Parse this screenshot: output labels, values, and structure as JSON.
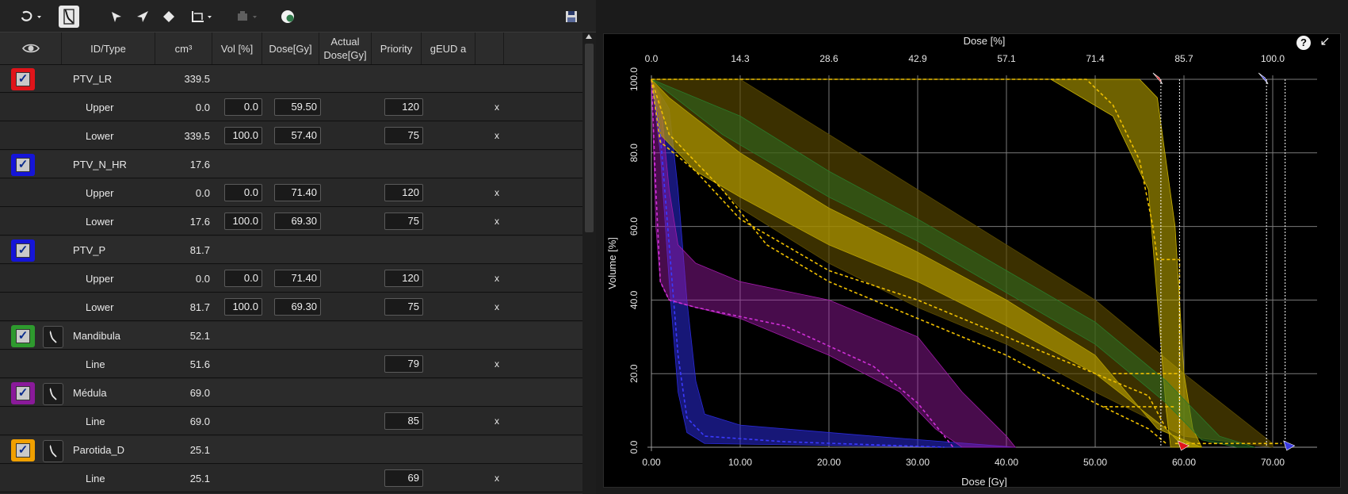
{
  "toolbar": {
    "icons": [
      "structure-menu-icon",
      "dvh-objective-icon",
      "pointer-arrow-icon",
      "navigate-arrow-icon",
      "point-diamond-icon",
      "line-objective-icon",
      "disabled-tool-icon",
      "sphere-icon",
      "save-icon"
    ]
  },
  "table": {
    "headers": {
      "eye": "",
      "id_type": "ID/Type",
      "cm3": "cm³",
      "vol": "Vol [%]",
      "dose": "Dose[Gy]",
      "actual_line1": "Actual",
      "actual_line2": "Dose[Gy]",
      "priority": "Priority",
      "geud": "gEUD a"
    },
    "structures": [
      {
        "name": "PTV_LR",
        "volume": "339.5",
        "color": "#e0141a",
        "has_dvh": false,
        "objectives": [
          {
            "type": "Upper",
            "cm3": "0.0",
            "vol": "0.0",
            "dose": "59.50",
            "priority": "120",
            "x": "x"
          },
          {
            "type": "Lower",
            "cm3": "339.5",
            "vol": "100.0",
            "dose": "57.40",
            "priority": "75",
            "x": "x"
          }
        ]
      },
      {
        "name": "PTV_N_HR",
        "volume": "17.6",
        "color": "#1515d8",
        "has_dvh": false,
        "objectives": [
          {
            "type": "Upper",
            "cm3": "0.0",
            "vol": "0.0",
            "dose": "71.40",
            "priority": "120",
            "x": "x"
          },
          {
            "type": "Lower",
            "cm3": "17.6",
            "vol": "100.0",
            "dose": "69.30",
            "priority": "75",
            "x": "x"
          }
        ]
      },
      {
        "name": "PTV_P",
        "volume": "81.7",
        "color": "#1515d8",
        "has_dvh": false,
        "objectives": [
          {
            "type": "Upper",
            "cm3": "0.0",
            "vol": "0.0",
            "dose": "71.40",
            "priority": "120",
            "x": "x"
          },
          {
            "type": "Lower",
            "cm3": "81.7",
            "vol": "100.0",
            "dose": "69.30",
            "priority": "75",
            "x": "x"
          }
        ]
      },
      {
        "name": "Mandibula",
        "volume": "52.1",
        "color": "#2e9a2e",
        "has_dvh": true,
        "objectives": [
          {
            "type": "Line",
            "cm3": "51.6",
            "vol": "",
            "dose": "",
            "priority": "79",
            "x": "x"
          }
        ]
      },
      {
        "name": "Médula",
        "volume": "69.0",
        "color": "#8a1a9a",
        "has_dvh": true,
        "objectives": [
          {
            "type": "Line",
            "cm3": "69.0",
            "vol": "",
            "dose": "",
            "priority": "85",
            "x": "x"
          }
        ]
      },
      {
        "name": "Parotida_D",
        "volume": "25.1",
        "color": "#f0a000",
        "has_dvh": true,
        "objectives": [
          {
            "type": "Line",
            "cm3": "25.1",
            "vol": "",
            "dose": "",
            "priority": "69",
            "x": "x"
          }
        ]
      }
    ]
  },
  "chart_data": {
    "type": "area",
    "title": "",
    "xlabel": "Dose [Gy]",
    "ylabel": "Volume [%]",
    "x2label": "Dose [%]",
    "xlim": [
      0,
      70
    ],
    "ylim": [
      0,
      100
    ],
    "x_ticks": [
      "0.00",
      "10.00",
      "20.00",
      "30.00",
      "40.00",
      "50.00",
      "60.00",
      "70.00"
    ],
    "x2_ticks": [
      "0.0",
      "14.3",
      "28.6",
      "42.9",
      "57.1",
      "71.4",
      "85.7",
      "100.0"
    ],
    "y_ticks": [
      "0.0",
      "20.0",
      "40.0",
      "60.0",
      "80.0",
      "100.0"
    ],
    "grid": true,
    "bands": [
      {
        "color": "#2a2ad8",
        "opacity": 0.55,
        "upper": [
          [
            0,
            100
          ],
          [
            2,
            92
          ],
          [
            3,
            70
          ],
          [
            4,
            40
          ],
          [
            5,
            18
          ],
          [
            6,
            9
          ],
          [
            10,
            6
          ],
          [
            25,
            3
          ],
          [
            41,
            0
          ]
        ],
        "lower": [
          [
            0,
            100
          ],
          [
            1,
            80
          ],
          [
            2,
            45
          ],
          [
            3,
            15
          ],
          [
            4,
            4
          ],
          [
            6,
            1
          ],
          [
            20,
            0.5
          ],
          [
            34,
            0
          ]
        ]
      },
      {
        "color": "#a01aa8",
        "opacity": 0.45,
        "upper": [
          [
            0,
            100
          ],
          [
            1,
            95
          ],
          [
            2,
            70
          ],
          [
            3,
            55
          ],
          [
            5,
            50
          ],
          [
            10,
            45
          ],
          [
            20,
            40
          ],
          [
            30,
            30
          ],
          [
            35,
            15
          ],
          [
            40,
            3
          ],
          [
            41,
            0
          ]
        ],
        "lower": [
          [
            0,
            100
          ],
          [
            0.5,
            60
          ],
          [
            1,
            45
          ],
          [
            2,
            40
          ],
          [
            5,
            38
          ],
          [
            10,
            35
          ],
          [
            20,
            25
          ],
          [
            28,
            15
          ],
          [
            32,
            5
          ],
          [
            35,
            0
          ]
        ]
      },
      {
        "color": "#5a4a00",
        "opacity": 0.65,
        "upper": [
          [
            0,
            100
          ],
          [
            10,
            100
          ],
          [
            20,
            85
          ],
          [
            30,
            70
          ],
          [
            40,
            55
          ],
          [
            50,
            40
          ],
          [
            60,
            20
          ],
          [
            70,
            1
          ]
        ],
        "lower": [
          [
            0,
            100
          ],
          [
            2,
            85
          ],
          [
            10,
            65
          ],
          [
            20,
            50
          ],
          [
            30,
            38
          ],
          [
            40,
            28
          ],
          [
            50,
            15
          ],
          [
            60,
            3
          ],
          [
            70,
            0
          ]
        ]
      },
      {
        "color": "#b8a000",
        "opacity": 0.65,
        "upper": [
          [
            0,
            100
          ],
          [
            2,
            95
          ],
          [
            10,
            80
          ],
          [
            20,
            65
          ],
          [
            30,
            53
          ],
          [
            40,
            40
          ],
          [
            50,
            25
          ],
          [
            57,
            5
          ],
          [
            62,
            0
          ]
        ],
        "lower": [
          [
            0,
            100
          ],
          [
            1,
            85
          ],
          [
            5,
            75
          ],
          [
            10,
            68
          ],
          [
            20,
            55
          ],
          [
            30,
            45
          ],
          [
            40,
            33
          ],
          [
            50,
            20
          ],
          [
            58,
            5
          ],
          [
            60,
            0
          ]
        ]
      },
      {
        "color": "#c8b000",
        "opacity": 0.55,
        "upper": [
          [
            0,
            100
          ],
          [
            55,
            100
          ],
          [
            57,
            95
          ],
          [
            59,
            60
          ],
          [
            60,
            20
          ],
          [
            61,
            5
          ],
          [
            62,
            0
          ]
        ],
        "lower": [
          [
            0,
            100
          ],
          [
            45,
            100
          ],
          [
            52,
            90
          ],
          [
            56,
            70
          ],
          [
            57,
            40
          ],
          [
            58,
            10
          ],
          [
            58.5,
            0
          ]
        ]
      },
      {
        "color": "#2a7a2a",
        "opacity": 0.45,
        "upper": [
          [
            0,
            100
          ],
          [
            10,
            90
          ],
          [
            20,
            75
          ],
          [
            30,
            62
          ],
          [
            40,
            48
          ],
          [
            50,
            34
          ],
          [
            58,
            18
          ],
          [
            64,
            3
          ],
          [
            68,
            0
          ]
        ],
        "lower": [
          [
            0,
            100
          ],
          [
            8,
            85
          ],
          [
            20,
            68
          ],
          [
            30,
            56
          ],
          [
            40,
            42
          ],
          [
            50,
            28
          ],
          [
            58,
            12
          ],
          [
            62,
            2
          ],
          [
            66,
            0
          ]
        ]
      }
    ],
    "dashed_lines": [
      {
        "color": "#3a3aff",
        "points": [
          [
            0,
            100
          ],
          [
            1,
            85
          ],
          [
            2,
            55
          ],
          [
            3,
            25
          ],
          [
            4,
            8
          ],
          [
            6,
            3
          ],
          [
            15,
            1.5
          ],
          [
            33,
            0
          ]
        ]
      },
      {
        "color": "#d030d8",
        "points": [
          [
            0,
            100
          ],
          [
            0.5,
            70
          ],
          [
            1,
            45
          ],
          [
            2,
            40
          ],
          [
            5,
            38
          ],
          [
            15,
            33
          ],
          [
            25,
            22
          ],
          [
            30,
            12
          ],
          [
            34,
            0
          ]
        ]
      },
      {
        "color": "#f0c000",
        "points": [
          [
            0,
            100
          ],
          [
            2,
            85
          ],
          [
            8,
            70
          ],
          [
            13,
            55
          ],
          [
            20,
            45
          ],
          [
            30,
            35
          ],
          [
            40,
            25
          ],
          [
            50,
            12
          ],
          [
            56,
            5
          ],
          [
            58,
            1
          ]
        ]
      },
      {
        "color": "#f0c000",
        "points": [
          [
            0,
            100
          ],
          [
            1,
            83
          ],
          [
            5,
            75
          ],
          [
            10,
            62
          ],
          [
            20,
            48
          ],
          [
            30,
            40
          ],
          [
            40,
            30
          ],
          [
            50,
            20
          ],
          [
            56,
            14
          ],
          [
            58,
            5
          ]
        ]
      },
      {
        "color": "#f0c000",
        "points": [
          [
            0,
            100
          ],
          [
            49,
            100
          ],
          [
            52,
            93
          ],
          [
            55,
            78
          ],
          [
            56.5,
            60
          ],
          [
            57,
            51
          ],
          [
            59.5,
            51
          ],
          [
            59.5,
            20
          ],
          [
            59.5,
            0
          ]
        ]
      },
      {
        "color": "#f0c000",
        "points": [
          [
            52,
            20
          ],
          [
            59.5,
            20
          ]
        ]
      },
      {
        "color": "#f0c000",
        "points": [
          [
            51,
            11
          ],
          [
            59,
            11
          ]
        ]
      },
      {
        "color": "#f0c000",
        "points": [
          [
            59,
            1
          ],
          [
            71,
            1
          ]
        ]
      }
    ],
    "objective_lines": [
      {
        "dose": 57.4,
        "color": "#ffffff"
      },
      {
        "dose": 59.5,
        "color": "#ffffff"
      },
      {
        "dose": 69.3,
        "color": "#ffffff"
      },
      {
        "dose": 71.4,
        "color": "#ffffff"
      }
    ],
    "markers": [
      {
        "dose": 57.4,
        "volume": 100,
        "color": "#e0141a",
        "direction": "down"
      },
      {
        "dose": 69.3,
        "volume": 100,
        "color": "#3a3ae0",
        "direction": "down"
      },
      {
        "dose": 59.5,
        "volume": 0,
        "color": "#e0141a",
        "direction": "up"
      },
      {
        "dose": 71.4,
        "volume": 0,
        "color": "#3a3ae0",
        "direction": "up"
      }
    ]
  },
  "plot_controls": {
    "help_label": "?",
    "collapse_label": "↙"
  }
}
